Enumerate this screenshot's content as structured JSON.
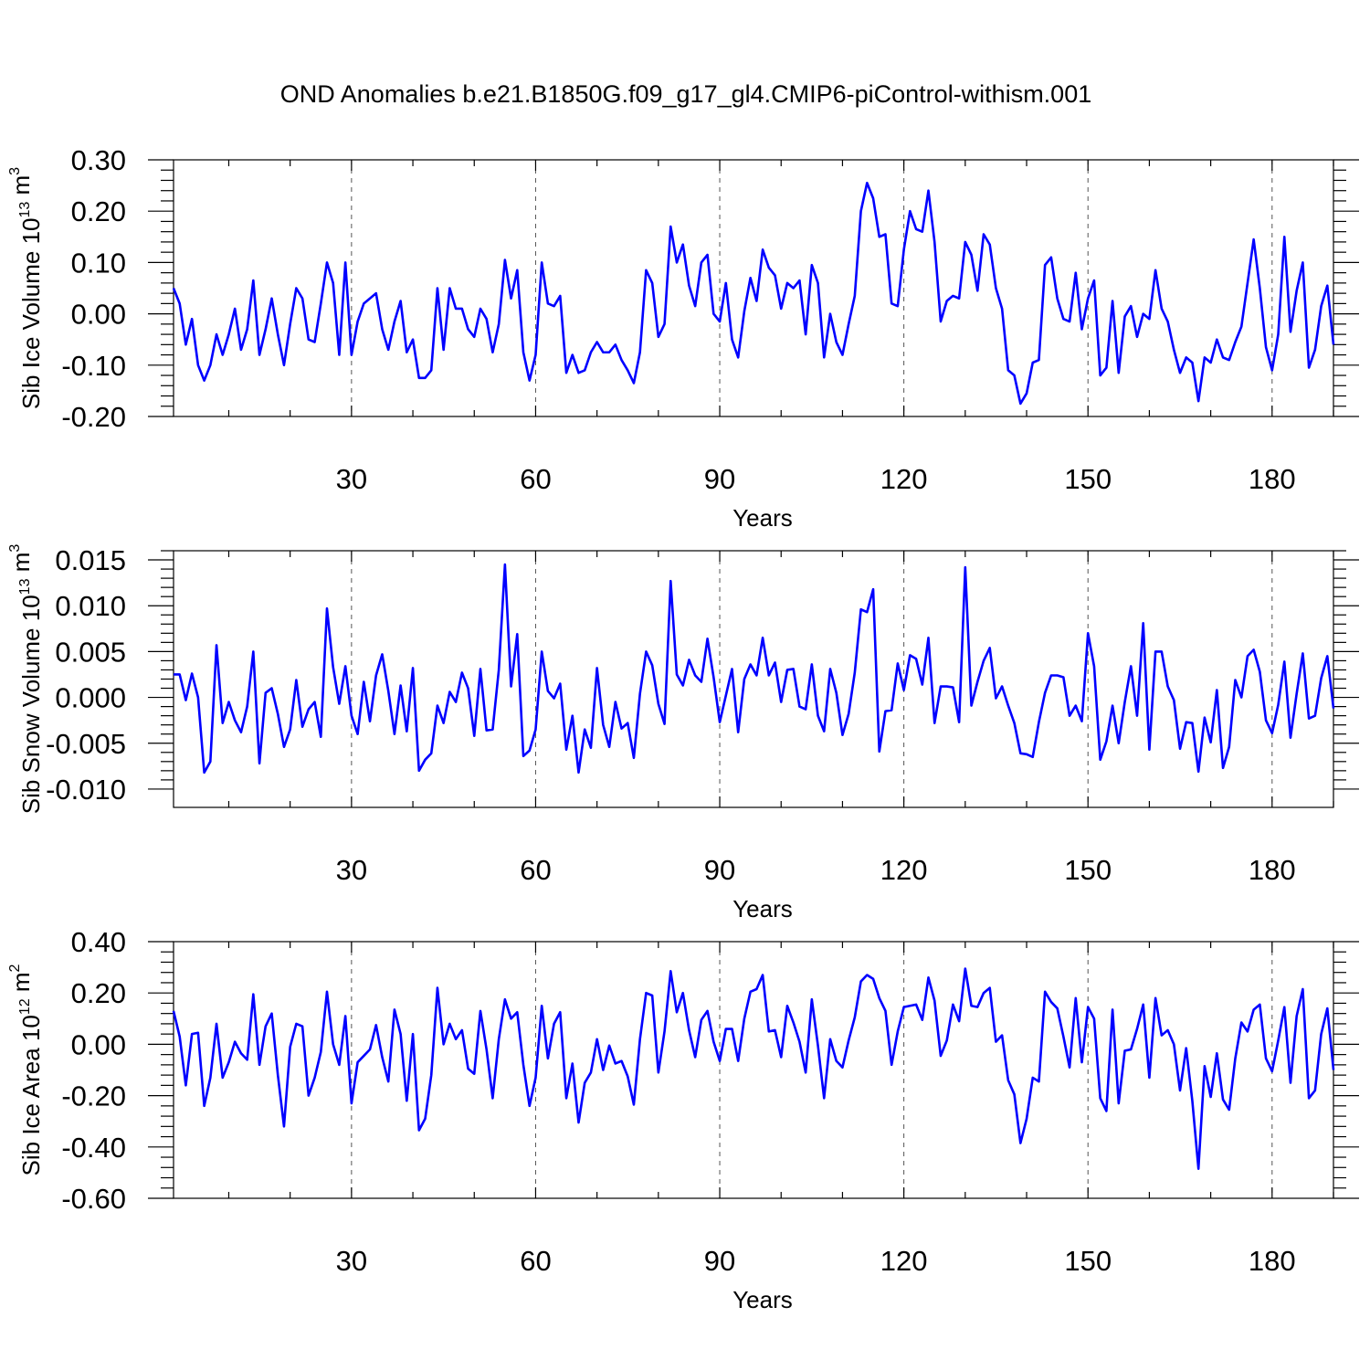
{
  "title": "OND Anomalies b.e21.B1850G.f09_g17_gl4.CMIP6-piControl-withism.001",
  "chart_data": [
    {
      "type": "line",
      "ylabel_prefix": "Sib Ice Volume 10",
      "ylabel_exp": "13",
      "ylabel_unit": " m",
      "ylabel_unit_exp": "3",
      "xlabel": "Years",
      "xlim": [
        1,
        190
      ],
      "ylim": [
        -0.2,
        0.3
      ],
      "xticks": [
        30,
        60,
        90,
        120,
        150,
        180
      ],
      "yticks": [
        -0.2,
        -0.1,
        0.0,
        0.1,
        0.2,
        0.3
      ],
      "ytick_labels": [
        "-0.20",
        "-0.10",
        "0.00",
        "0.10",
        "0.20",
        "0.30"
      ],
      "grid_x": true,
      "series": [
        {
          "color": "#0000ff",
          "values": [
            0.05,
            0.02,
            -0.06,
            -0.01,
            -0.1,
            -0.13,
            -0.1,
            -0.04,
            -0.08,
            -0.04,
            0.01,
            -0.07,
            -0.03,
            0.065,
            -0.08,
            -0.03,
            0.03,
            -0.04,
            -0.1,
            -0.02,
            0.05,
            0.03,
            -0.05,
            -0.055,
            0.02,
            0.1,
            0.06,
            -0.08,
            0.1,
            -0.08,
            -0.015,
            0.02,
            0.03,
            0.04,
            -0.03,
            -0.07,
            -0.015,
            0.025,
            -0.075,
            -0.05,
            -0.125,
            -0.125,
            -0.11,
            0.05,
            -0.07,
            0.05,
            0.01,
            0.01,
            -0.03,
            -0.045,
            0.01,
            -0.01,
            -0.075,
            -0.02,
            0.105,
            0.03,
            0.085,
            -0.075,
            -0.13,
            -0.08,
            0.1,
            0.02,
            0.015,
            0.035,
            -0.115,
            -0.08,
            -0.115,
            -0.11,
            -0.075,
            -0.055,
            -0.075,
            -0.075,
            -0.06,
            -0.09,
            -0.11,
            -0.135,
            -0.075,
            0.085,
            0.06,
            -0.045,
            -0.02,
            0.17,
            0.1,
            0.135,
            0.055,
            0.015,
            0.1,
            0.115,
            0.0,
            -0.015,
            0.06,
            -0.05,
            -0.085,
            0.005,
            0.07,
            0.025,
            0.125,
            0.09,
            0.075,
            0.01,
            0.06,
            0.05,
            0.065,
            -0.04,
            0.095,
            0.06,
            -0.085,
            0.0,
            -0.055,
            -0.08,
            -0.02,
            0.035,
            0.2,
            0.255,
            0.225,
            0.15,
            0.155,
            0.02,
            0.015,
            0.125,
            0.2,
            0.165,
            0.16,
            0.24,
            0.14,
            -0.015,
            0.025,
            0.035,
            0.03,
            0.14,
            0.115,
            0.045,
            0.155,
            0.135,
            0.05,
            0.01,
            -0.11,
            -0.12,
            -0.175,
            -0.155,
            -0.095,
            -0.09,
            0.095,
            0.11,
            0.03,
            -0.01,
            -0.015,
            0.08,
            -0.03,
            0.03,
            0.065,
            -0.12,
            -0.105,
            0.025,
            -0.115,
            -0.005,
            0.015,
            -0.045,
            0.0,
            -0.01,
            0.085,
            0.01,
            -0.015,
            -0.07,
            -0.115,
            -0.085,
            -0.095,
            -0.17,
            -0.085,
            -0.095,
            -0.05,
            -0.085,
            -0.09,
            -0.055,
            -0.025,
            0.06,
            0.145,
            0.05,
            -0.065,
            -0.11,
            -0.04,
            0.15,
            -0.035,
            0.045,
            0.1,
            -0.105,
            -0.07,
            0.015,
            0.055,
            -0.06
          ]
        }
      ]
    },
    {
      "type": "line",
      "ylabel_prefix": "Sib Snow Volume 10",
      "ylabel_exp": "13",
      "ylabel_unit": " m",
      "ylabel_unit_exp": "3",
      "xlabel": "Years",
      "xlim": [
        1,
        190
      ],
      "ylim": [
        -0.012,
        0.016
      ],
      "xticks": [
        30,
        60,
        90,
        120,
        150,
        180
      ],
      "yticks": [
        -0.01,
        -0.005,
        0.0,
        0.005,
        0.01,
        0.015
      ],
      "ytick_labels": [
        "-0.010",
        "-0.005",
        "0.000",
        "0.005",
        "0.010",
        "0.015"
      ],
      "grid_x": true,
      "series": [
        {
          "color": "#0000ff",
          "values": [
            0.0025,
            0.0025,
            -0.0003,
            0.0026,
            0.0,
            -0.0082,
            -0.007,
            0.0057,
            -0.0028,
            -0.0005,
            -0.0025,
            -0.0038,
            -0.001,
            0.005,
            -0.0072,
            0.0005,
            0.001,
            -0.0018,
            -0.0054,
            -0.0035,
            0.0019,
            -0.0032,
            -0.0013,
            -0.0005,
            -0.0043,
            0.0097,
            0.0033,
            -0.0007,
            0.0034,
            -0.002,
            -0.004,
            0.0017,
            -0.0026,
            0.0024,
            0.0047,
            0.0007,
            -0.004,
            0.0013,
            -0.0037,
            0.0032,
            -0.008,
            -0.0068,
            -0.0061,
            -0.0009,
            -0.0028,
            0.0006,
            -0.0005,
            0.0027,
            0.001,
            -0.0042,
            0.0031,
            -0.0036,
            -0.0035,
            0.003,
            0.0145,
            0.0012,
            0.0069,
            -0.0064,
            -0.0058,
            -0.0035,
            0.005,
            0.0007,
            -0.0001,
            0.0015,
            -0.0057,
            -0.002,
            -0.0082,
            -0.0035,
            -0.0055,
            0.0032,
            -0.003,
            -0.0054,
            -0.0005,
            -0.0034,
            -0.0028,
            -0.0066,
            0.0004,
            0.005,
            0.0035,
            -0.0007,
            -0.0029,
            0.0127,
            0.0025,
            0.0013,
            0.0041,
            0.0024,
            0.0017,
            0.0064,
            0.0022,
            -0.0027,
            0.0002,
            0.0031,
            -0.0038,
            0.002,
            0.0036,
            0.0024,
            0.0065,
            0.0024,
            0.0038,
            -0.0005,
            0.003,
            0.0031,
            -0.001,
            -0.0013,
            0.0036,
            -0.002,
            -0.0037,
            0.0031,
            0.0005,
            -0.0041,
            -0.0018,
            0.0027,
            0.0096,
            0.0093,
            0.0118,
            -0.0059,
            -0.0015,
            -0.0014,
            0.0037,
            0.0008,
            0.0046,
            0.0042,
            0.0014,
            0.0065,
            -0.0028,
            0.0012,
            0.0012,
            0.0011,
            -0.0027,
            0.0142,
            -0.0009,
            0.0017,
            0.004,
            0.0054,
            -0.0001,
            0.0012,
            -0.0009,
            -0.0028,
            -0.0061,
            -0.0062,
            -0.0065,
            -0.0027,
            0.0005,
            0.0024,
            0.0024,
            0.0022,
            -0.002,
            -0.0009,
            -0.0026,
            0.007,
            0.0034,
            -0.0068,
            -0.0048,
            -0.0009,
            -0.005,
            -0.0005,
            0.0034,
            -0.002,
            0.0081,
            -0.0057,
            0.005,
            0.005,
            0.0012,
            -0.0003,
            -0.0056,
            -0.0027,
            -0.0028,
            -0.0081,
            -0.0022,
            -0.0049,
            0.0008,
            -0.0077,
            -0.0054,
            0.0019,
            0.0,
            0.0045,
            0.0052,
            0.0028,
            -0.0025,
            -0.0039,
            -0.0008,
            0.0039,
            -0.0044,
            0.0004,
            0.0048,
            -0.0023,
            -0.002,
            0.0021,
            0.0045,
            -0.0012
          ]
        }
      ]
    },
    {
      "type": "line",
      "ylabel_prefix": "Sib Ice Area 10",
      "ylabel_exp": "12",
      "ylabel_unit": " m",
      "ylabel_unit_exp": "2",
      "xlabel": "Years",
      "xlim": [
        1,
        190
      ],
      "ylim": [
        -0.6,
        0.4
      ],
      "xticks": [
        30,
        60,
        90,
        120,
        150,
        180
      ],
      "yticks": [
        -0.6,
        -0.4,
        -0.2,
        0.0,
        0.2,
        0.4
      ],
      "ytick_labels": [
        "-0.60",
        "-0.40",
        "-0.20",
        "0.00",
        "0.20",
        "0.40"
      ],
      "grid_x": true,
      "series": [
        {
          "color": "#0000ff",
          "values": [
            0.13,
            0.03,
            -0.16,
            0.04,
            0.045,
            -0.24,
            -0.13,
            0.08,
            -0.13,
            -0.07,
            0.01,
            -0.035,
            -0.06,
            0.195,
            -0.08,
            0.07,
            0.12,
            -0.12,
            -0.32,
            -0.01,
            0.08,
            0.07,
            -0.2,
            -0.13,
            -0.03,
            0.205,
            0.0,
            -0.08,
            0.11,
            -0.23,
            -0.07,
            -0.045,
            -0.02,
            0.075,
            -0.05,
            -0.145,
            0.135,
            0.04,
            -0.22,
            0.04,
            -0.335,
            -0.29,
            -0.12,
            0.22,
            0.0,
            0.08,
            0.02,
            0.055,
            -0.095,
            -0.115,
            0.13,
            -0.02,
            -0.21,
            0.02,
            0.175,
            0.1,
            0.125,
            -0.08,
            -0.24,
            -0.13,
            0.15,
            -0.055,
            0.08,
            0.125,
            -0.21,
            -0.075,
            -0.305,
            -0.15,
            -0.11,
            0.02,
            -0.1,
            -0.005,
            -0.075,
            -0.065,
            -0.125,
            -0.235,
            0.02,
            0.2,
            0.19,
            -0.11,
            0.05,
            0.285,
            0.125,
            0.2,
            0.055,
            -0.05,
            0.095,
            0.13,
            0.01,
            -0.065,
            0.06,
            0.06,
            -0.065,
            0.1,
            0.205,
            0.215,
            0.27,
            0.05,
            0.055,
            -0.05,
            0.15,
            0.085,
            0.01,
            -0.11,
            0.175,
            -0.005,
            -0.21,
            0.02,
            -0.065,
            -0.09,
            0.015,
            0.105,
            0.245,
            0.27,
            0.255,
            0.18,
            0.13,
            -0.08,
            0.05,
            0.145,
            0.15,
            0.155,
            0.095,
            0.26,
            0.17,
            -0.045,
            0.015,
            0.155,
            0.09,
            0.295,
            0.15,
            0.145,
            0.2,
            0.22,
            0.01,
            0.035,
            -0.14,
            -0.195,
            -0.385,
            -0.29,
            -0.13,
            -0.145,
            0.205,
            0.165,
            0.14,
            0.03,
            -0.09,
            0.18,
            -0.07,
            0.145,
            0.1,
            -0.21,
            -0.26,
            0.135,
            -0.23,
            -0.025,
            -0.02,
            0.06,
            0.155,
            -0.13,
            0.18,
            0.035,
            0.055,
            0.0,
            -0.18,
            -0.015,
            -0.22,
            -0.485,
            -0.085,
            -0.205,
            -0.035,
            -0.215,
            -0.255,
            -0.055,
            0.085,
            0.05,
            0.135,
            0.155,
            -0.055,
            -0.105,
            0.015,
            0.145,
            -0.15,
            0.11,
            0.215,
            -0.21,
            -0.18,
            0.04,
            0.14,
            -0.1
          ]
        }
      ]
    }
  ]
}
